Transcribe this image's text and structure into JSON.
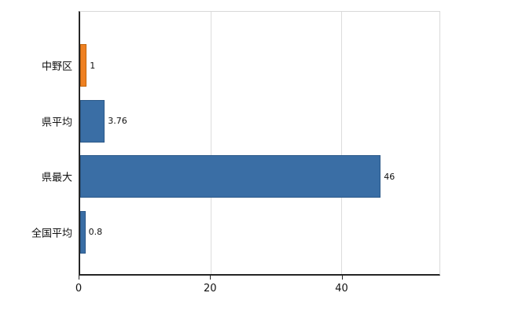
{
  "chart_data": {
    "type": "bar",
    "orientation": "horizontal",
    "title": "",
    "categories": [
      "中野区",
      "県平均",
      "県最大",
      "全国平均"
    ],
    "values": [
      1,
      3.76,
      46,
      0.8
    ],
    "value_labels": [
      "1",
      "3.76",
      "46",
      "0.8"
    ],
    "series": [
      {
        "name": "value",
        "values": [
          1,
          3.76,
          46,
          0.8
        ]
      }
    ],
    "bar_colors": [
      "#ef8122",
      "#3a6ea5",
      "#3a6ea5",
      "#3a6ea5"
    ],
    "bar_border_colors": [
      "#c2660d",
      "#2d5a8a",
      "#2d5a8a",
      "#2d5a8a"
    ],
    "xlim": [
      0,
      55
    ],
    "x_ticks": [
      0,
      20,
      40
    ],
    "grid": true,
    "legend": false
  },
  "colors": {
    "background": "#ffffff",
    "axis": "#262626",
    "grid": "#dcdcdc",
    "plot_border": "#d9d9d9",
    "text": "#111111"
  }
}
